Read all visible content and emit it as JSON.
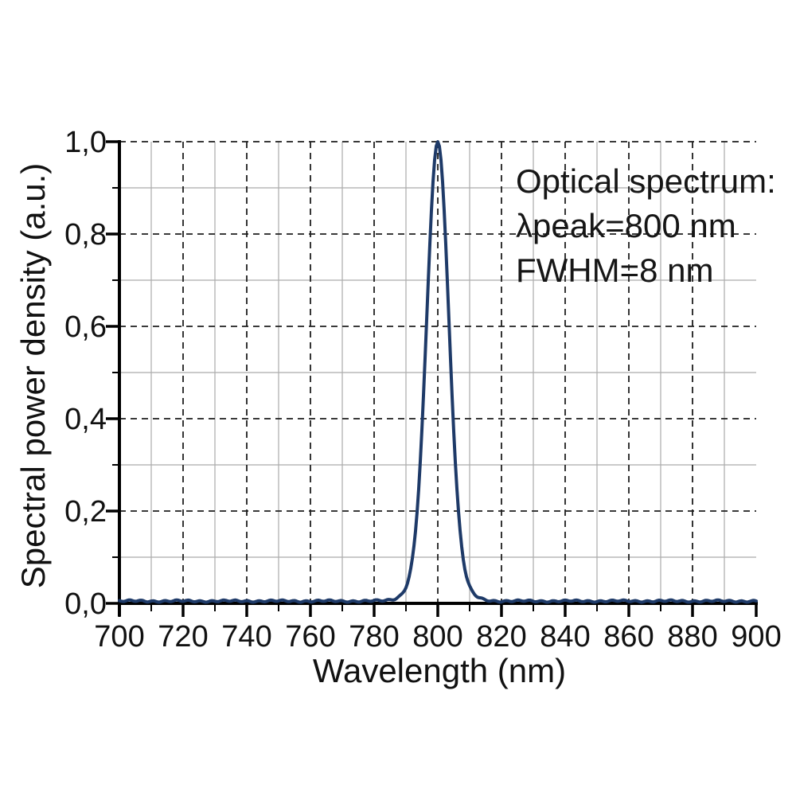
{
  "figure": {
    "background": "#ffffff"
  },
  "chart_data": {
    "type": "line",
    "title": "",
    "xlabel": "Wavelength (nm)",
    "ylabel": "Spectral power density (a.u.)",
    "xlim": [
      700,
      900
    ],
    "ylim": [
      0.0,
      1.0
    ],
    "x_major_ticks": [
      700,
      720,
      740,
      760,
      780,
      800,
      820,
      840,
      860,
      880,
      900
    ],
    "x_tick_labels": [
      "700",
      "720",
      "740",
      "760",
      "780",
      "800",
      "820",
      "840",
      "860",
      "880",
      "900"
    ],
    "x_minor_step": 10,
    "y_major_ticks": [
      0.0,
      0.2,
      0.4,
      0.6,
      0.8,
      1.0
    ],
    "y_tick_labels": [
      "0,0",
      "0,2",
      "0,4",
      "0,6",
      "0,8",
      "1,0"
    ],
    "y_minor_step": 0.1,
    "grid": {
      "major_style": "dashed",
      "minor_style": "solid",
      "major_color": "#1f1f1f",
      "minor_color": "#ababab"
    },
    "legend": null,
    "annotation": {
      "lines": [
        "Optical spectrum:",
        "λpeak=800 nm",
        "FWHM=8 nm"
      ]
    },
    "series": [
      {
        "name": "optical spectrum",
        "color": "#1e3a68",
        "line_width": 4,
        "model": {
          "shape": "gaussian-with-foot",
          "peak_nm": 800,
          "fwhm_nm": 8,
          "amplitude": 1.0,
          "baseline": 0.005,
          "foot_fraction": 0.1,
          "foot_fwhm_nm": 13,
          "noise_amplitude": 0.0025
        },
        "points": [
          [
            700,
            0.005
          ],
          [
            710,
            0.005
          ],
          [
            720,
            0.006
          ],
          [
            730,
            0.005
          ],
          [
            740,
            0.006
          ],
          [
            750,
            0.005
          ],
          [
            760,
            0.004
          ],
          [
            770,
            0.005
          ],
          [
            780,
            0.006
          ],
          [
            784,
            0.008
          ],
          [
            786,
            0.009
          ],
          [
            788,
            0.016
          ],
          [
            790,
            0.036
          ],
          [
            791,
            0.059
          ],
          [
            792,
            0.096
          ],
          [
            793,
            0.158
          ],
          [
            794,
            0.249
          ],
          [
            795,
            0.375
          ],
          [
            796,
            0.53
          ],
          [
            797,
            0.698
          ],
          [
            798,
            0.852
          ],
          [
            799,
            0.96
          ],
          [
            800,
            1.0
          ],
          [
            801,
            0.96
          ],
          [
            802,
            0.852
          ],
          [
            803,
            0.698
          ],
          [
            804,
            0.53
          ],
          [
            805,
            0.375
          ],
          [
            806,
            0.249
          ],
          [
            807,
            0.158
          ],
          [
            808,
            0.096
          ],
          [
            809,
            0.059
          ],
          [
            810,
            0.036
          ],
          [
            812,
            0.016
          ],
          [
            814,
            0.009
          ],
          [
            816,
            0.007
          ],
          [
            818,
            0.006
          ],
          [
            820,
            0.005
          ],
          [
            830,
            0.005
          ],
          [
            840,
            0.006
          ],
          [
            850,
            0.005
          ],
          [
            860,
            0.004
          ],
          [
            870,
            0.005
          ],
          [
            880,
            0.005
          ],
          [
            890,
            0.005
          ],
          [
            900,
            0.005
          ]
        ]
      }
    ]
  }
}
